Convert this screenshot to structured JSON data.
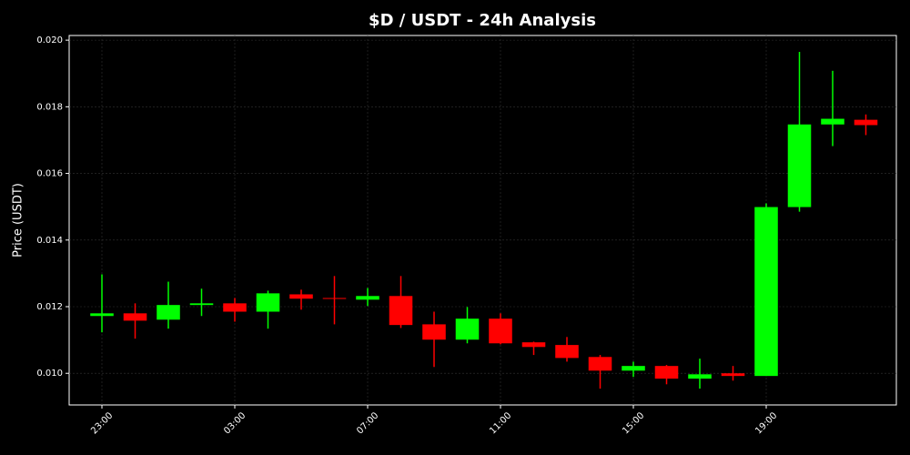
{
  "chart_data": {
    "type": "candlestick",
    "title": "$D / USDT - 24h Analysis",
    "y_label": "Price (USDT)",
    "categories": [
      "23:00",
      null,
      null,
      null,
      "03:00",
      null,
      null,
      null,
      "07:00",
      null,
      null,
      null,
      "11:00",
      null,
      null,
      null,
      "15:00",
      null,
      null,
      null,
      "19:00",
      null,
      null,
      null
    ],
    "open": [
      0.01172,
      0.0118,
      0.01161,
      0.01205,
      0.0121,
      0.01185,
      0.01237,
      0.01226,
      0.01221,
      0.01232,
      0.01147,
      0.01101,
      0.01164,
      0.01093,
      0.01085,
      0.01049,
      0.01008,
      0.01022,
      0.00984,
      0.01,
      0.00992,
      0.01499,
      0.01747,
      0.01761
    ],
    "high": [
      0.01297,
      0.0121,
      0.01275,
      0.01254,
      0.01226,
      0.01248,
      0.01251,
      0.01292,
      0.01256,
      0.01292,
      0.01185,
      0.01199,
      0.0118,
      0.01095,
      0.01109,
      0.01055,
      0.01035,
      0.01025,
      0.01044,
      0.01022,
      0.0151,
      0.01965,
      0.01908,
      0.01777
    ],
    "low": [
      0.01123,
      0.01104,
      0.01134,
      0.01172,
      0.01155,
      0.01134,
      0.01191,
      0.01147,
      0.01202,
      0.01136,
      0.01019,
      0.0109,
      0.01087,
      0.01055,
      0.01035,
      0.00954,
      0.00989,
      0.00967,
      0.00954,
      0.00978,
      0.00992,
      0.01485,
      0.01682,
      0.01715
    ],
    "close": [
      0.0118,
      0.01158,
      0.01205,
      0.0121,
      0.01185,
      0.0124,
      0.01224,
      0.01224,
      0.01232,
      0.01145,
      0.01101,
      0.01164,
      0.0109,
      0.01079,
      0.01046,
      0.01008,
      0.01022,
      0.00984,
      0.00997,
      0.00992,
      0.01499,
      0.01747,
      0.01764,
      0.01745
    ],
    "up_color": "#00ff00",
    "down_color": "#ff0000",
    "ylim": [
      0.00905,
      0.02014
    ],
    "yticks": [
      {
        "value": 0.01,
        "label": "0.010"
      },
      {
        "value": 0.012,
        "label": "0.012"
      },
      {
        "value": 0.014,
        "label": "0.014"
      },
      {
        "value": 0.016,
        "label": "0.016"
      },
      {
        "value": 0.018,
        "label": "0.018"
      },
      {
        "value": 0.02,
        "label": "0.020"
      }
    ],
    "grid": true
  }
}
